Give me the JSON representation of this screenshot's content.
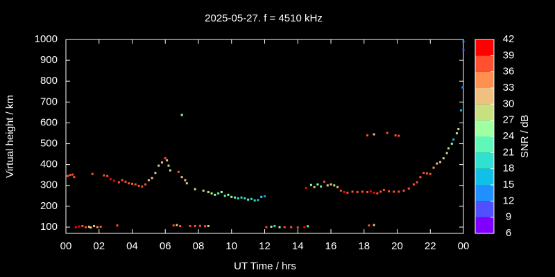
{
  "chart_data": {
    "type": "scatter",
    "title": "2025-05-27. f = 4510 kHz",
    "xlabel": "UT Time / hrs",
    "ylabel": "Virtual height / km",
    "colorbar_label": "SNR / dB",
    "xlim": [
      0,
      24
    ],
    "xticks": [
      {
        "value": 0,
        "label": "00"
      },
      {
        "value": 2,
        "label": "02"
      },
      {
        "value": 4,
        "label": "04"
      },
      {
        "value": 6,
        "label": "06"
      },
      {
        "value": 8,
        "label": "08"
      },
      10,
      12,
      14,
      16,
      18,
      20,
      22,
      {
        "value": 24,
        "label": "00"
      }
    ],
    "ylim": [
      70,
      1000
    ],
    "yticks": [
      100,
      200,
      300,
      400,
      500,
      600,
      700,
      800,
      900,
      1000
    ],
    "clim": [
      6,
      42
    ],
    "cticks": [
      6,
      9,
      12,
      15,
      18,
      21,
      24,
      27,
      30,
      33,
      36,
      39,
      42
    ],
    "colors": [
      "#8000ff",
      "#5050ff",
      "#2090ff",
      "#10c0e8",
      "#30e0d0",
      "#60f8b8",
      "#a0ffa0",
      "#c8e080",
      "#f0c080",
      "#ff9050",
      "#ff5030",
      "#ff0000"
    ],
    "x": [
      0.1,
      0.25,
      0.4,
      0.5,
      0.6,
      0.8,
      1.0,
      1.2,
      1.4,
      1.5,
      1.7,
      1.9,
      2.1,
      3.1,
      1.6,
      2.3,
      2.5,
      2.7,
      2.9,
      3.2,
      3.4,
      3.6,
      3.8,
      4.0,
      4.2,
      4.4,
      4.6,
      4.8,
      5.0,
      5.2,
      5.4,
      5.6,
      5.8,
      6.0,
      6.1,
      6.2,
      6.3,
      6.5,
      6.7,
      6.9,
      6.8,
      7.0,
      7.2,
      7.3,
      7.0,
      7.8,
      8.3,
      8.6,
      8.8,
      9.0,
      9.2,
      9.4,
      9.6,
      9.8,
      10.0,
      10.2,
      10.4,
      10.6,
      10.8,
      11.0,
      11.2,
      11.4,
      11.6,
      11.8,
      12.0,
      7.5,
      7.8,
      8.1,
      8.4,
      8.6,
      12.1,
      12.4,
      12.6,
      12.9,
      13.2,
      13.6,
      14.0,
      14.4,
      14.6,
      14.5,
      14.8,
      15.0,
      15.2,
      15.4,
      15.6,
      15.8,
      16.0,
      16.2,
      16.4,
      16.6,
      16.8,
      17.0,
      17.3,
      17.6,
      17.9,
      18.2,
      18.4,
      18.6,
      18.8,
      19.0,
      19.2,
      19.5,
      19.8,
      20.1,
      20.4,
      20.7,
      21.0,
      21.2,
      21.4,
      21.6,
      21.8,
      22.0,
      22.2,
      22.4,
      22.6,
      22.8,
      23.0,
      23.1,
      23.3,
      23.4,
      23.6,
      23.7,
      23.85,
      23.95,
      24.0,
      24.0,
      18.2,
      18.6,
      19.4,
      19.9,
      20.1,
      18.3,
      18.6
    ],
    "values": [
      345,
      350,
      352,
      340,
      100,
      103,
      105,
      100,
      102,
      98,
      105,
      100,
      102,
      108,
      355,
      348,
      345,
      330,
      322,
      315,
      325,
      318,
      310,
      308,
      305,
      298,
      295,
      305,
      325,
      335,
      360,
      395,
      410,
      430,
      420,
      395,
      372,
      108,
      110,
      105,
      365,
      340,
      325,
      310,
      638,
      282,
      275,
      268,
      262,
      255,
      262,
      268,
      250,
      255,
      245,
      242,
      238,
      242,
      238,
      232,
      235,
      228,
      230,
      245,
      248,
      105,
      105,
      106,
      104,
      105,
      100,
      102,
      105,
      100,
      100,
      100,
      98,
      100,
      104,
      288,
      302,
      292,
      305,
      295,
      318,
      300,
      305,
      300,
      292,
      275,
      268,
      265,
      270,
      268,
      270,
      268,
      272,
      265,
      262,
      270,
      278,
      272,
      270,
      270,
      275,
      285,
      305,
      315,
      340,
      360,
      358,
      355,
      385,
      405,
      412,
      430,
      455,
      478,
      500,
      520,
      550,
      570,
      660,
      770,
      950,
      990,
      540,
      545,
      552,
      540,
      538,
      108,
      110
    ],
    "snr": [
      38,
      38,
      38,
      38,
      39,
      39,
      37,
      38,
      30,
      28,
      30,
      33,
      37,
      38,
      38,
      38,
      38,
      40,
      40,
      38,
      37,
      36,
      38,
      38,
      38,
      38,
      38,
      36,
      30,
      30,
      30,
      28,
      30,
      36,
      30,
      28,
      28,
      38,
      30,
      36,
      36,
      30,
      30,
      29,
      25,
      28,
      29,
      29,
      25,
      24,
      22,
      24,
      22,
      25,
      24,
      21,
      20,
      20,
      18,
      22,
      20,
      20,
      16,
      20,
      12,
      38,
      38,
      37,
      36,
      29,
      38,
      28,
      20,
      24,
      36,
      38,
      38,
      39,
      22,
      40,
      25,
      30,
      25,
      22,
      38,
      28,
      30,
      28,
      30,
      36,
      40,
      38,
      38,
      38,
      36,
      38,
      40,
      40,
      38,
      36,
      38,
      38,
      38,
      38,
      36,
      38,
      38,
      38,
      38,
      37,
      38,
      38,
      33,
      32,
      32,
      28,
      28,
      27,
      25,
      17,
      28,
      28,
      15,
      14,
      10,
      12,
      38,
      31,
      38,
      38,
      38,
      38,
      32
    ]
  }
}
